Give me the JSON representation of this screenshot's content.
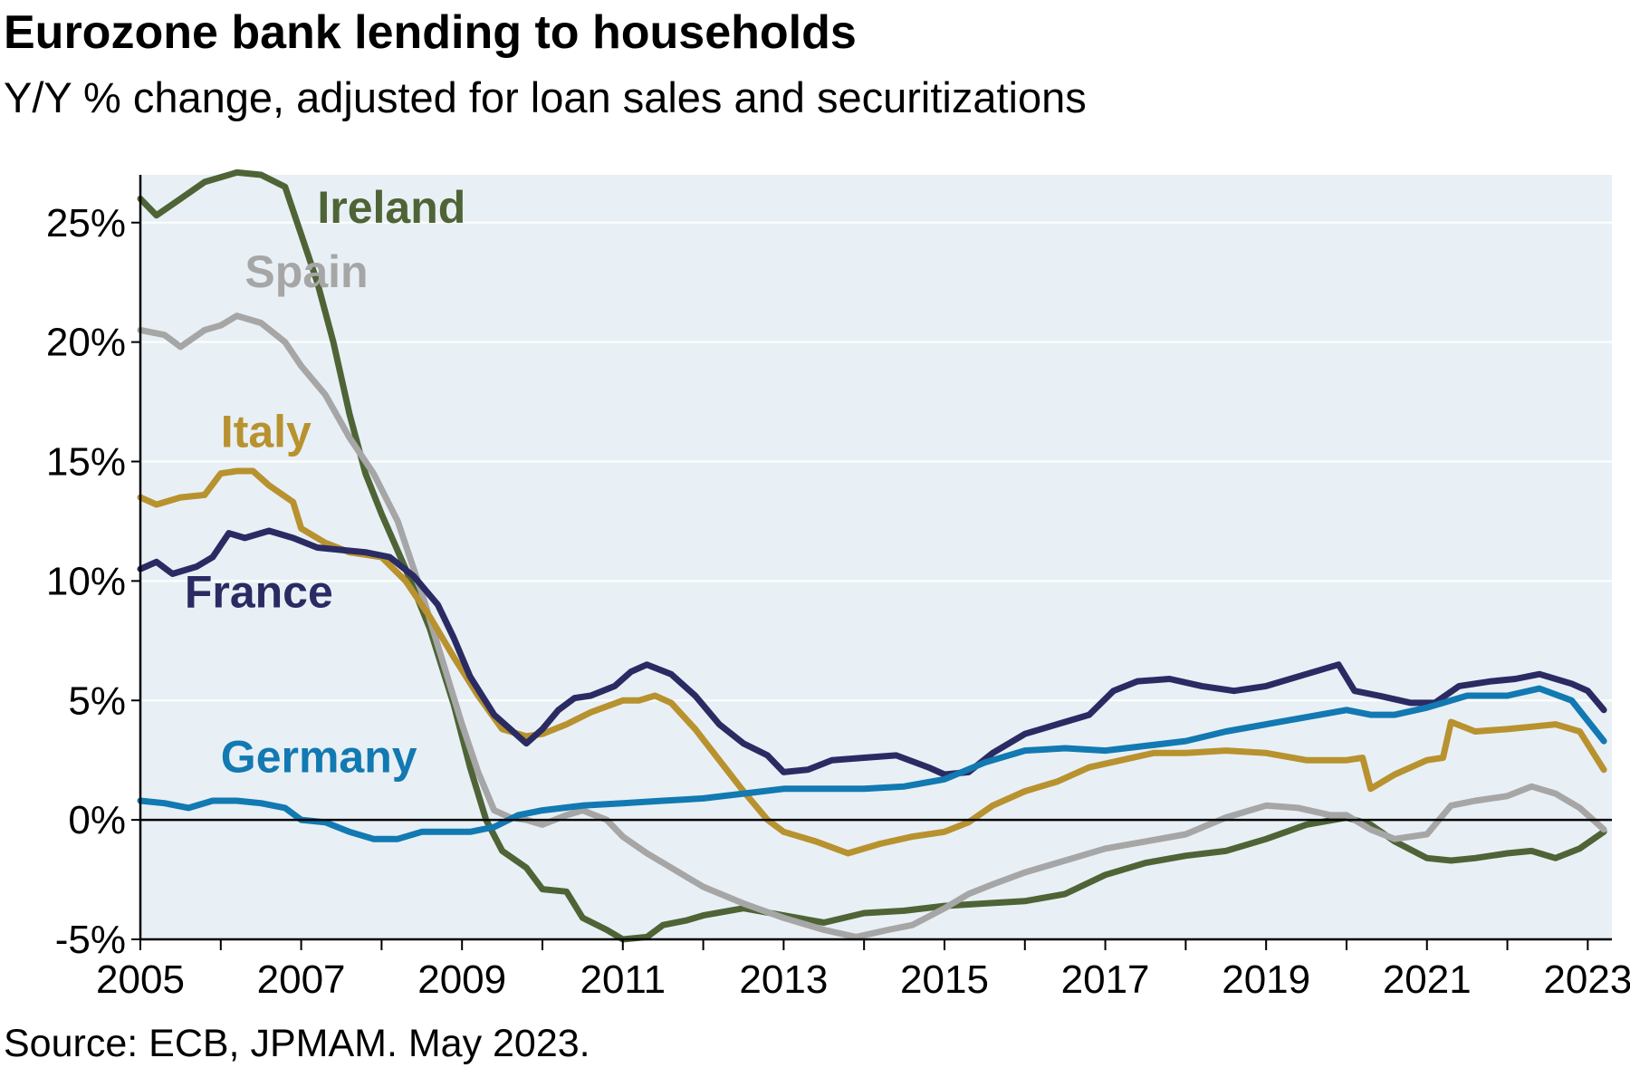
{
  "title": "Eurozone bank lending to households",
  "subtitle": "Y/Y % change, adjusted for loan sales and securitizations",
  "source": "Source: ECB, JPMAM. May 2023.",
  "chart_data": {
    "type": "line",
    "title": "Eurozone bank lending to households",
    "subtitle": "Y/Y % change, adjusted for loan sales and securitizations",
    "xlabel": "",
    "ylabel": "",
    "xlim": [
      2005,
      2023.3
    ],
    "ylim": [
      -5,
      27
    ],
    "x_ticks": [
      2005,
      2007,
      2009,
      2011,
      2013,
      2015,
      2017,
      2019,
      2021,
      2023
    ],
    "x_tick_labels": [
      "2005",
      "2007",
      "2009",
      "2011",
      "2013",
      "2015",
      "2017",
      "2019",
      "2021",
      "2023"
    ],
    "y_ticks": [
      -5,
      0,
      5,
      10,
      15,
      20,
      25
    ],
    "y_tick_labels": [
      "-5%",
      "0%",
      "5%",
      "10%",
      "15%",
      "20%",
      "25%"
    ],
    "grid": "horizontal",
    "background": "#E8F0F5",
    "legend": "direct labels on lines",
    "series": [
      {
        "name": "Ireland",
        "color": "#4E6436",
        "label_at": [
          2007.2,
          25
        ],
        "points": [
          [
            2005,
            26
          ],
          [
            2005.2,
            25.3
          ],
          [
            2005.5,
            26
          ],
          [
            2005.8,
            26.7
          ],
          [
            2006.2,
            27.1
          ],
          [
            2006.5,
            27
          ],
          [
            2006.8,
            26.5
          ],
          [
            2007.0,
            24.5
          ],
          [
            2007.2,
            22.5
          ],
          [
            2007.4,
            20
          ],
          [
            2007.6,
            17
          ],
          [
            2007.8,
            14.5
          ],
          [
            2008.0,
            12.8
          ],
          [
            2008.3,
            10.5
          ],
          [
            2008.6,
            8
          ],
          [
            2008.9,
            4.8
          ],
          [
            2009.1,
            2.2
          ],
          [
            2009.3,
            0
          ],
          [
            2009.5,
            -1.3
          ],
          [
            2009.8,
            -2
          ],
          [
            2010.0,
            -2.9
          ],
          [
            2010.3,
            -3
          ],
          [
            2010.5,
            -4.1
          ],
          [
            2010.8,
            -4.6
          ],
          [
            2011.0,
            -5
          ],
          [
            2011.3,
            -4.9
          ],
          [
            2011.5,
            -4.4
          ],
          [
            2011.8,
            -4.2
          ],
          [
            2012.0,
            -4
          ],
          [
            2012.5,
            -3.7
          ],
          [
            2013.0,
            -4
          ],
          [
            2013.5,
            -4.3
          ],
          [
            2014.0,
            -3.9
          ],
          [
            2014.5,
            -3.8
          ],
          [
            2015.0,
            -3.6
          ],
          [
            2015.5,
            -3.5
          ],
          [
            2016.0,
            -3.4
          ],
          [
            2016.5,
            -3.1
          ],
          [
            2017.0,
            -2.3
          ],
          [
            2017.5,
            -1.8
          ],
          [
            2018.0,
            -1.5
          ],
          [
            2018.5,
            -1.3
          ],
          [
            2019.0,
            -0.8
          ],
          [
            2019.5,
            -0.2
          ],
          [
            2020.0,
            0.1
          ],
          [
            2020.3,
            -0.2
          ],
          [
            2020.6,
            -0.9
          ],
          [
            2021.0,
            -1.6
          ],
          [
            2021.3,
            -1.7
          ],
          [
            2021.6,
            -1.6
          ],
          [
            2022.0,
            -1.4
          ],
          [
            2022.3,
            -1.3
          ],
          [
            2022.6,
            -1.6
          ],
          [
            2022.9,
            -1.2
          ],
          [
            2023.2,
            -0.5
          ]
        ]
      },
      {
        "name": "Spain",
        "color": "#A6A6A6",
        "label_at": [
          2006.3,
          22.3
        ],
        "points": [
          [
            2005,
            20.5
          ],
          [
            2005.3,
            20.3
          ],
          [
            2005.5,
            19.8
          ],
          [
            2005.8,
            20.5
          ],
          [
            2006.0,
            20.7
          ],
          [
            2006.2,
            21.1
          ],
          [
            2006.5,
            20.8
          ],
          [
            2006.8,
            20
          ],
          [
            2007.0,
            19
          ],
          [
            2007.3,
            17.8
          ],
          [
            2007.6,
            16
          ],
          [
            2007.9,
            14.5
          ],
          [
            2008.2,
            12.5
          ],
          [
            2008.5,
            9.5
          ],
          [
            2008.8,
            6.2
          ],
          [
            2009.0,
            4
          ],
          [
            2009.2,
            2
          ],
          [
            2009.4,
            0.4
          ],
          [
            2009.6,
            0.1
          ],
          [
            2009.8,
            0
          ],
          [
            2010.0,
            -0.2
          ],
          [
            2010.3,
            0.2
          ],
          [
            2010.5,
            0.4
          ],
          [
            2010.8,
            0
          ],
          [
            2011.0,
            -0.7
          ],
          [
            2011.3,
            -1.4
          ],
          [
            2011.6,
            -2
          ],
          [
            2012.0,
            -2.8
          ],
          [
            2012.5,
            -3.5
          ],
          [
            2013.0,
            -4.1
          ],
          [
            2013.5,
            -4.6
          ],
          [
            2013.9,
            -4.9
          ],
          [
            2014.3,
            -4.6
          ],
          [
            2014.6,
            -4.4
          ],
          [
            2015.0,
            -3.7
          ],
          [
            2015.3,
            -3.1
          ],
          [
            2015.6,
            -2.7
          ],
          [
            2016.0,
            -2.2
          ],
          [
            2016.5,
            -1.7
          ],
          [
            2017.0,
            -1.2
          ],
          [
            2017.5,
            -0.9
          ],
          [
            2018.0,
            -0.6
          ],
          [
            2018.5,
            0.1
          ],
          [
            2019.0,
            0.6
          ],
          [
            2019.4,
            0.5
          ],
          [
            2019.8,
            0.2
          ],
          [
            2020.0,
            0.2
          ],
          [
            2020.3,
            -0.4
          ],
          [
            2020.6,
            -0.8
          ],
          [
            2021.0,
            -0.6
          ],
          [
            2021.3,
            0.6
          ],
          [
            2021.6,
            0.8
          ],
          [
            2022.0,
            1.0
          ],
          [
            2022.3,
            1.4
          ],
          [
            2022.6,
            1.1
          ],
          [
            2022.9,
            0.5
          ],
          [
            2023.2,
            -0.4
          ]
        ]
      },
      {
        "name": "Italy",
        "color": "#B8922F",
        "label_at": [
          2006.0,
          15.6
        ],
        "points": [
          [
            2005,
            13.5
          ],
          [
            2005.2,
            13.2
          ],
          [
            2005.5,
            13.5
          ],
          [
            2005.8,
            13.6
          ],
          [
            2006.0,
            14.5
          ],
          [
            2006.2,
            14.6
          ],
          [
            2006.4,
            14.6
          ],
          [
            2006.6,
            14
          ],
          [
            2006.9,
            13.3
          ],
          [
            2007.0,
            12.2
          ],
          [
            2007.3,
            11.6
          ],
          [
            2007.6,
            11.2
          ],
          [
            2008.0,
            11
          ],
          [
            2008.3,
            10
          ],
          [
            2008.6,
            8.5
          ],
          [
            2008.9,
            6.8
          ],
          [
            2009.2,
            5.2
          ],
          [
            2009.5,
            3.8
          ],
          [
            2009.8,
            3.5
          ],
          [
            2010.0,
            3.6
          ],
          [
            2010.3,
            4
          ],
          [
            2010.6,
            4.5
          ],
          [
            2011.0,
            5
          ],
          [
            2011.2,
            5
          ],
          [
            2011.4,
            5.2
          ],
          [
            2011.6,
            4.9
          ],
          [
            2011.9,
            3.8
          ],
          [
            2012.2,
            2.5
          ],
          [
            2012.5,
            1.2
          ],
          [
            2012.8,
            0
          ],
          [
            2013.0,
            -0.5
          ],
          [
            2013.4,
            -0.9
          ],
          [
            2013.8,
            -1.4
          ],
          [
            2014.2,
            -1
          ],
          [
            2014.6,
            -0.7
          ],
          [
            2015.0,
            -0.5
          ],
          [
            2015.3,
            -0.1
          ],
          [
            2015.6,
            0.6
          ],
          [
            2016.0,
            1.2
          ],
          [
            2016.4,
            1.6
          ],
          [
            2016.8,
            2.2
          ],
          [
            2017.2,
            2.5
          ],
          [
            2017.6,
            2.8
          ],
          [
            2018.0,
            2.8
          ],
          [
            2018.5,
            2.9
          ],
          [
            2019.0,
            2.8
          ],
          [
            2019.5,
            2.5
          ],
          [
            2020.0,
            2.5
          ],
          [
            2020.2,
            2.6
          ],
          [
            2020.3,
            1.3
          ],
          [
            2020.6,
            1.9
          ],
          [
            2021.0,
            2.5
          ],
          [
            2021.2,
            2.6
          ],
          [
            2021.3,
            4.1
          ],
          [
            2021.6,
            3.7
          ],
          [
            2022.0,
            3.8
          ],
          [
            2022.3,
            3.9
          ],
          [
            2022.6,
            4.0
          ],
          [
            2022.9,
            3.7
          ],
          [
            2023.2,
            2.1
          ]
        ]
      },
      {
        "name": "France",
        "color": "#2B2B63",
        "label_at": [
          2005.55,
          8.9
        ],
        "points": [
          [
            2005,
            10.5
          ],
          [
            2005.2,
            10.8
          ],
          [
            2005.4,
            10.3
          ],
          [
            2005.7,
            10.6
          ],
          [
            2005.9,
            11
          ],
          [
            2006.1,
            12
          ],
          [
            2006.3,
            11.8
          ],
          [
            2006.6,
            12.1
          ],
          [
            2006.9,
            11.8
          ],
          [
            2007.2,
            11.4
          ],
          [
            2007.5,
            11.3
          ],
          [
            2007.8,
            11.2
          ],
          [
            2008.1,
            11
          ],
          [
            2008.4,
            10.2
          ],
          [
            2008.7,
            9
          ],
          [
            2008.9,
            7.6
          ],
          [
            2009.1,
            6
          ],
          [
            2009.4,
            4.4
          ],
          [
            2009.6,
            3.8
          ],
          [
            2009.8,
            3.2
          ],
          [
            2010.0,
            3.8
          ],
          [
            2010.2,
            4.6
          ],
          [
            2010.4,
            5.1
          ],
          [
            2010.6,
            5.2
          ],
          [
            2010.9,
            5.6
          ],
          [
            2011.1,
            6.2
          ],
          [
            2011.3,
            6.5
          ],
          [
            2011.6,
            6.1
          ],
          [
            2011.9,
            5.2
          ],
          [
            2012.2,
            4
          ],
          [
            2012.5,
            3.2
          ],
          [
            2012.8,
            2.7
          ],
          [
            2013.0,
            2
          ],
          [
            2013.3,
            2.1
          ],
          [
            2013.6,
            2.5
          ],
          [
            2014.0,
            2.6
          ],
          [
            2014.4,
            2.7
          ],
          [
            2014.8,
            2.2
          ],
          [
            2015.0,
            1.9
          ],
          [
            2015.3,
            2
          ],
          [
            2015.6,
            2.8
          ],
          [
            2016.0,
            3.6
          ],
          [
            2016.4,
            4
          ],
          [
            2016.8,
            4.4
          ],
          [
            2017.1,
            5.4
          ],
          [
            2017.4,
            5.8
          ],
          [
            2017.8,
            5.9
          ],
          [
            2018.2,
            5.6
          ],
          [
            2018.6,
            5.4
          ],
          [
            2019.0,
            5.6
          ],
          [
            2019.5,
            6.1
          ],
          [
            2019.9,
            6.5
          ],
          [
            2020.1,
            5.4
          ],
          [
            2020.4,
            5.2
          ],
          [
            2020.8,
            4.9
          ],
          [
            2021.1,
            4.9
          ],
          [
            2021.4,
            5.6
          ],
          [
            2021.8,
            5.8
          ],
          [
            2022.1,
            5.9
          ],
          [
            2022.4,
            6.1
          ],
          [
            2022.8,
            5.7
          ],
          [
            2023.0,
            5.4
          ],
          [
            2023.2,
            4.6
          ]
        ]
      },
      {
        "name": "Germany",
        "color": "#1279B2",
        "label_at": [
          2006.0,
          2.0
        ],
        "points": [
          [
            2005,
            0.8
          ],
          [
            2005.3,
            0.7
          ],
          [
            2005.6,
            0.5
          ],
          [
            2005.9,
            0.8
          ],
          [
            2006.2,
            0.8
          ],
          [
            2006.5,
            0.7
          ],
          [
            2006.8,
            0.5
          ],
          [
            2007.0,
            0
          ],
          [
            2007.3,
            -0.1
          ],
          [
            2007.6,
            -0.5
          ],
          [
            2007.9,
            -0.8
          ],
          [
            2008.2,
            -0.8
          ],
          [
            2008.5,
            -0.5
          ],
          [
            2008.8,
            -0.5
          ],
          [
            2009.1,
            -0.5
          ],
          [
            2009.4,
            -0.3
          ],
          [
            2009.7,
            0.2
          ],
          [
            2010.0,
            0.4
          ],
          [
            2010.5,
            0.6
          ],
          [
            2011.0,
            0.7
          ],
          [
            2011.5,
            0.8
          ],
          [
            2012.0,
            0.9
          ],
          [
            2012.5,
            1.1
          ],
          [
            2013.0,
            1.3
          ],
          [
            2013.5,
            1.3
          ],
          [
            2014.0,
            1.3
          ],
          [
            2014.5,
            1.4
          ],
          [
            2015.0,
            1.7
          ],
          [
            2015.5,
            2.4
          ],
          [
            2016.0,
            2.9
          ],
          [
            2016.5,
            3
          ],
          [
            2017.0,
            2.9
          ],
          [
            2017.5,
            3.1
          ],
          [
            2018.0,
            3.3
          ],
          [
            2018.5,
            3.7
          ],
          [
            2019.0,
            4
          ],
          [
            2019.5,
            4.3
          ],
          [
            2020.0,
            4.6
          ],
          [
            2020.3,
            4.4
          ],
          [
            2020.6,
            4.4
          ],
          [
            2021.0,
            4.7
          ],
          [
            2021.5,
            5.2
          ],
          [
            2022.0,
            5.2
          ],
          [
            2022.4,
            5.5
          ],
          [
            2022.8,
            5
          ],
          [
            2023.2,
            3.3
          ]
        ]
      }
    ]
  }
}
